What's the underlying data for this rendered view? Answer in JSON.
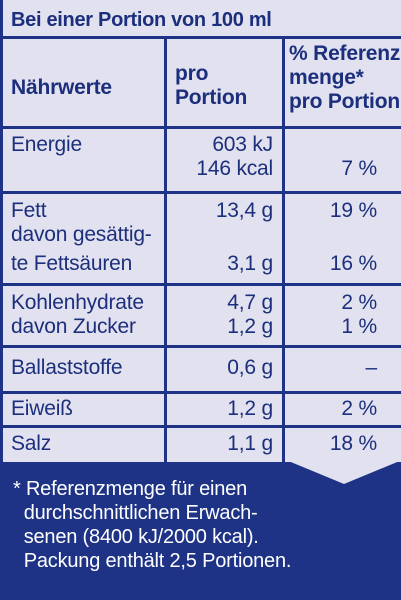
{
  "header": {
    "title": "Bei einer Portion von 100 ml"
  },
  "columns": {
    "nutrient": "Nährwerte",
    "per_portion": [
      "pro",
      "Portion"
    ],
    "reference": [
      "% Referenz-",
      "menge*",
      "pro Portion"
    ]
  },
  "rows": {
    "energie": {
      "label": "Energie",
      "value_kj": "603 kJ",
      "value_kcal": "146 kcal",
      "percent": "7 %"
    },
    "fett": {
      "label": "Fett",
      "value": "13,4 g",
      "percent": "19 %"
    },
    "gesaettigte": {
      "label_1": "davon gesättig-",
      "label_2": "te Fettsäuren",
      "value": "3,1 g",
      "percent": "16 %"
    },
    "kohlenhydrate": {
      "label": "Kohlenhydrate",
      "value": "4,7 g",
      "percent": "2 %"
    },
    "zucker": {
      "label": "davon Zucker",
      "value": "1,2 g",
      "percent": "1 %"
    },
    "ballaststoffe": {
      "label": "Ballaststoffe",
      "value": "0,6 g",
      "percent": "–"
    },
    "eiweiss": {
      "label": "Eiweiß",
      "value": "1,2 g",
      "percent": "2 %"
    },
    "salz": {
      "label": "Salz",
      "value": "1,1 g",
      "percent": "18 %"
    }
  },
  "footer": {
    "lines": [
      "* Referenzmenge für einen",
      "  durchschnittlichen Erwach-",
      "  senen (8400 kJ/2000 kcal).",
      "  Packung enthält 2,5 Portionen."
    ]
  },
  "colors": {
    "brand_blue": "#1e3386",
    "panel_bg": "#e2e1ef",
    "text_blue": "#1c2f7c"
  }
}
